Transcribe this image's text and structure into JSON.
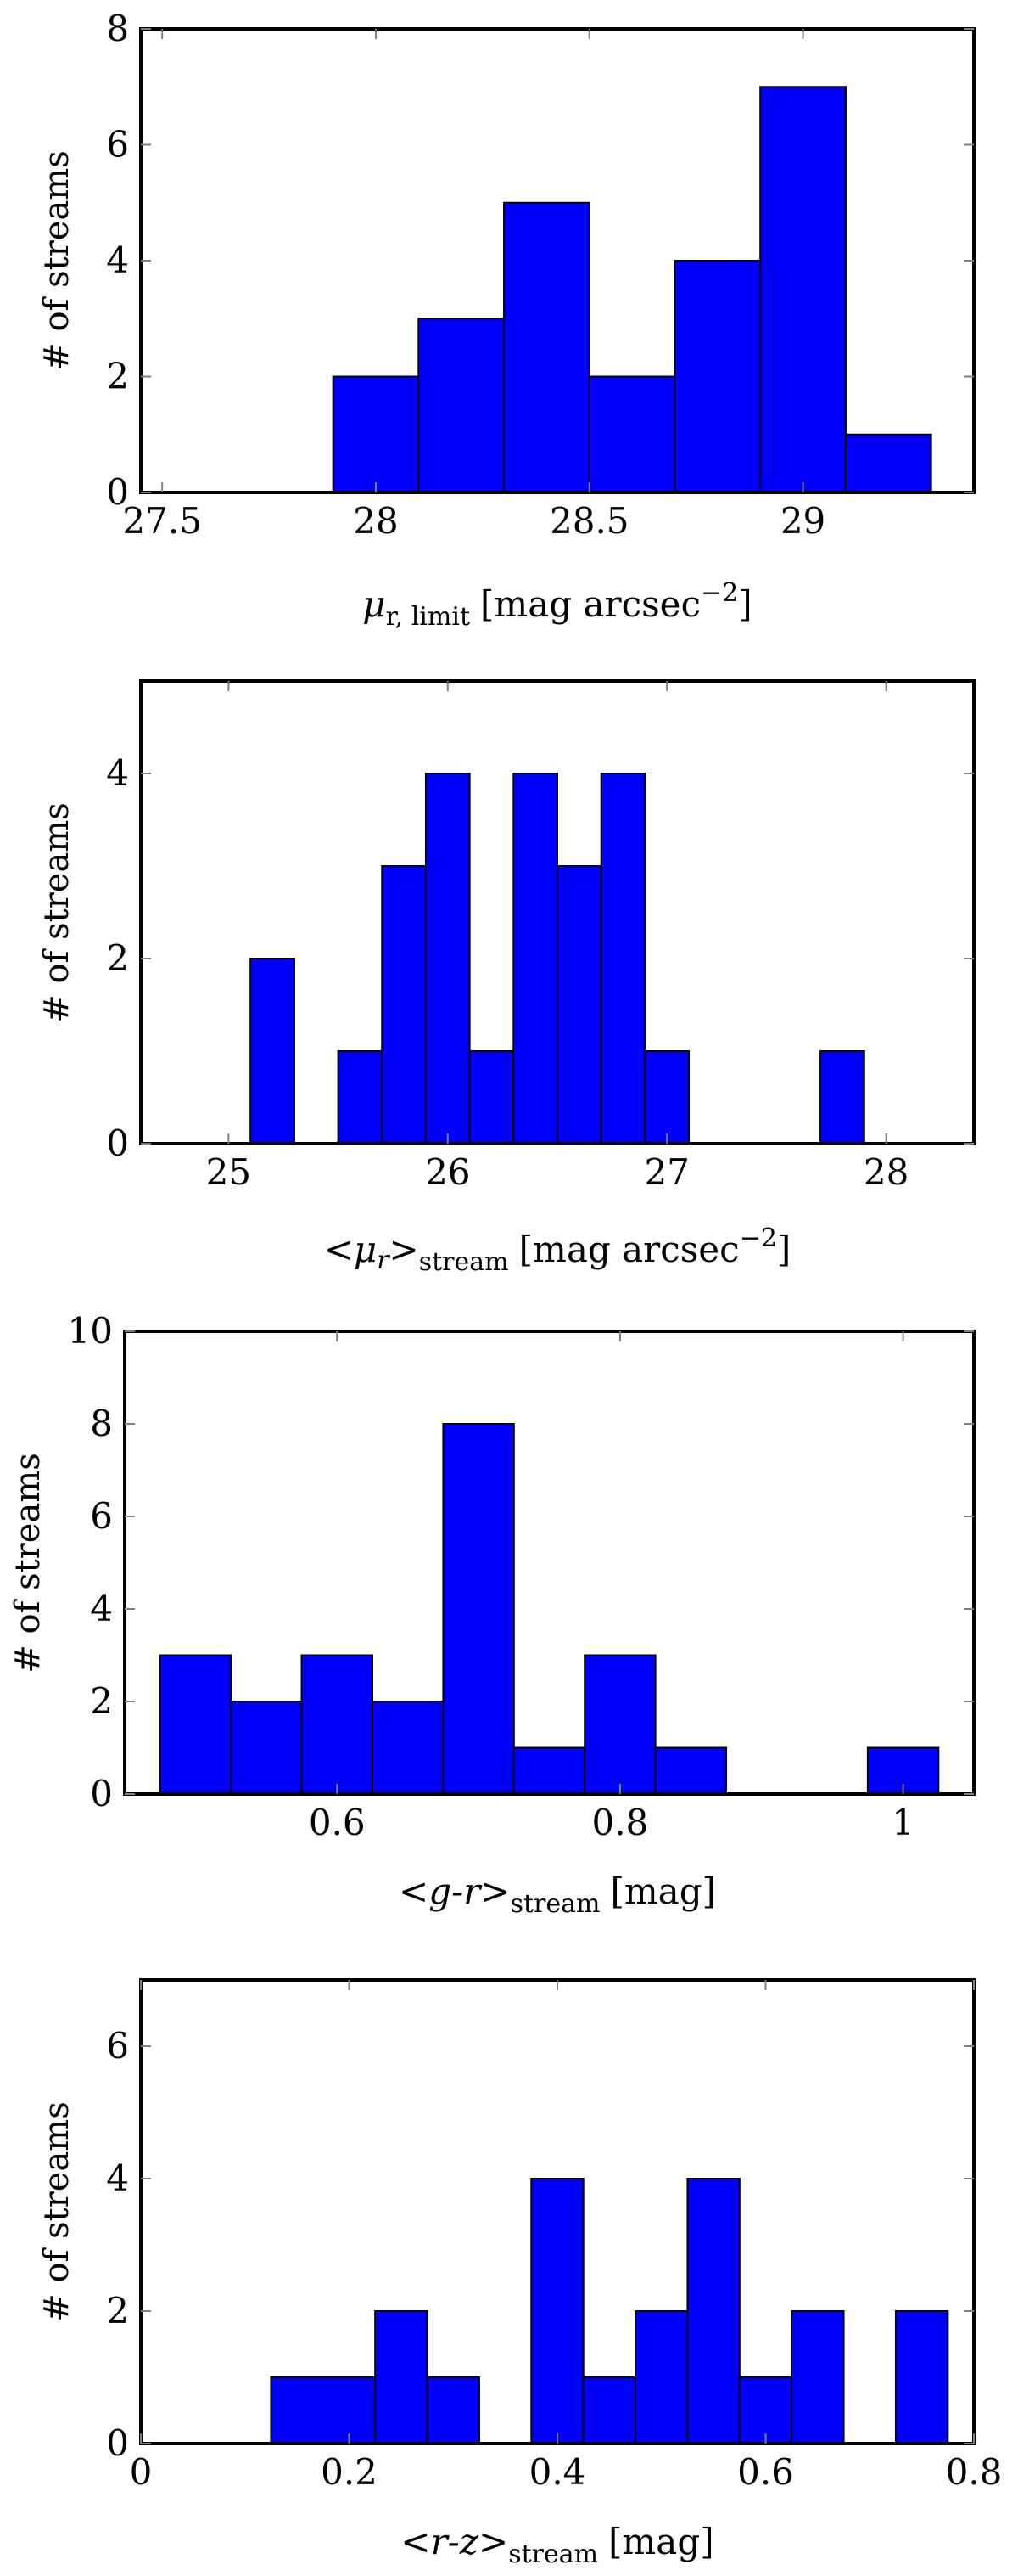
{
  "colors": {
    "bar": "#0000ff",
    "edge": "#000000",
    "tick": "#808080",
    "frame": "#000000"
  },
  "chart_data": [
    {
      "type": "bar",
      "title": "",
      "xlabel": "μr, limit [mag arcsec−2]",
      "xlabel_parts": {
        "symbol": "μ",
        "sub": "r, limit",
        "unit": "[mag arcsec",
        "sup": "−2",
        "close": "]"
      },
      "ylabel": "# of streams",
      "xlim": [
        27.45,
        29.4
      ],
      "ylim": [
        0,
        8
      ],
      "xticks": [
        27.5,
        28,
        28.5,
        29
      ],
      "xtick_labels": [
        "27.5",
        "28",
        "28.5",
        "29"
      ],
      "yticks": [
        0,
        2,
        4,
        6,
        8
      ],
      "ytick_labels": [
        "0",
        "2",
        "4",
        "6",
        "8"
      ],
      "bins": [
        {
          "x0": 27.9,
          "x1": 28.1,
          "value": 2
        },
        {
          "x0": 28.1,
          "x1": 28.3,
          "value": 3
        },
        {
          "x0": 28.3,
          "x1": 28.5,
          "value": 5
        },
        {
          "x0": 28.5,
          "x1": 28.7,
          "value": 2
        },
        {
          "x0": 28.7,
          "x1": 28.9,
          "value": 4
        },
        {
          "x0": 28.9,
          "x1": 29.1,
          "value": 7
        },
        {
          "x0": 29.1,
          "x1": 29.3,
          "value": 1
        }
      ]
    },
    {
      "type": "bar",
      "title": "",
      "xlabel": "<μr>stream [mag arcsec−2]",
      "xlabel_parts": {
        "open": "<",
        "symbol": "μ",
        "italic": "r",
        "close_bracket": ">",
        "sub": "stream",
        "unit": "[mag arcsec",
        "sup": "−2",
        "close": "]"
      },
      "ylabel": "# of streams",
      "xlim": [
        24.6,
        28.4
      ],
      "ylim": [
        0,
        5
      ],
      "xticks": [
        25,
        26,
        27,
        28
      ],
      "xtick_labels": [
        "25",
        "26",
        "27",
        "28"
      ],
      "yticks": [
        0,
        2,
        4
      ],
      "ytick_labels": [
        "0",
        "2",
        "4"
      ],
      "bins": [
        {
          "x0": 25.1,
          "x1": 25.3,
          "value": 2
        },
        {
          "x0": 25.5,
          "x1": 25.7,
          "value": 1
        },
        {
          "x0": 25.7,
          "x1": 25.9,
          "value": 3
        },
        {
          "x0": 25.9,
          "x1": 26.1,
          "value": 4
        },
        {
          "x0": 26.1,
          "x1": 26.3,
          "value": 1
        },
        {
          "x0": 26.3,
          "x1": 26.5,
          "value": 4
        },
        {
          "x0": 26.5,
          "x1": 26.7,
          "value": 3
        },
        {
          "x0": 26.7,
          "x1": 26.9,
          "value": 4
        },
        {
          "x0": 26.9,
          "x1": 27.1,
          "value": 1
        },
        {
          "x0": 27.7,
          "x1": 27.9,
          "value": 1
        }
      ]
    },
    {
      "type": "bar",
      "title": "",
      "xlabel": "<g-r>stream [mag]",
      "xlabel_parts": {
        "open": "<",
        "italic": "g-r",
        "close_bracket": ">",
        "sub": "stream",
        "unit": "[mag]"
      },
      "ylabel": "# of streams",
      "xlim": [
        0.45,
        1.05
      ],
      "ylim": [
        0,
        10
      ],
      "xticks": [
        0.6,
        0.8,
        1.0
      ],
      "xtick_labels": [
        "0.6",
        "0.8",
        "1"
      ],
      "yticks": [
        0,
        2,
        4,
        6,
        8,
        10
      ],
      "ytick_labels": [
        "0",
        "2",
        "4",
        "6",
        "8",
        "10"
      ],
      "bins": [
        {
          "x0": 0.475,
          "x1": 0.525,
          "value": 3
        },
        {
          "x0": 0.525,
          "x1": 0.575,
          "value": 2
        },
        {
          "x0": 0.575,
          "x1": 0.625,
          "value": 3
        },
        {
          "x0": 0.625,
          "x1": 0.675,
          "value": 2
        },
        {
          "x0": 0.675,
          "x1": 0.725,
          "value": 8
        },
        {
          "x0": 0.725,
          "x1": 0.775,
          "value": 1
        },
        {
          "x0": 0.775,
          "x1": 0.825,
          "value": 3
        },
        {
          "x0": 0.825,
          "x1": 0.875,
          "value": 1
        },
        {
          "x0": 0.975,
          "x1": 1.025,
          "value": 1
        }
      ]
    },
    {
      "type": "bar",
      "title": "",
      "xlabel": "<r-z>stream [mag]",
      "xlabel_parts": {
        "open": "<",
        "italic": "r-z",
        "close_bracket": ">",
        "sub": "stream",
        "unit": "[mag]"
      },
      "ylabel": "# of streams",
      "xlim": [
        0,
        0.8
      ],
      "ylim": [
        0,
        7
      ],
      "xticks": [
        0,
        0.2,
        0.4,
        0.6,
        0.8
      ],
      "xtick_labels": [
        "0",
        "0.2",
        "0.4",
        "0.6",
        "0.8"
      ],
      "yticks": [
        0,
        2,
        4,
        6
      ],
      "ytick_labels": [
        "0",
        "2",
        "4",
        "6"
      ],
      "bins": [
        {
          "x0": 0.125,
          "x1": 0.225,
          "value": 1
        },
        {
          "x0": 0.225,
          "x1": 0.275,
          "value": 2
        },
        {
          "x0": 0.275,
          "x1": 0.325,
          "value": 1
        },
        {
          "x0": 0.375,
          "x1": 0.425,
          "value": 4
        },
        {
          "x0": 0.425,
          "x1": 0.475,
          "value": 1
        },
        {
          "x0": 0.475,
          "x1": 0.525,
          "value": 2
        },
        {
          "x0": 0.525,
          "x1": 0.575,
          "value": 4
        },
        {
          "x0": 0.575,
          "x1": 0.625,
          "value": 1
        },
        {
          "x0": 0.625,
          "x1": 0.675,
          "value": 2
        },
        {
          "x0": 0.725,
          "x1": 0.775,
          "value": 2
        }
      ]
    }
  ]
}
